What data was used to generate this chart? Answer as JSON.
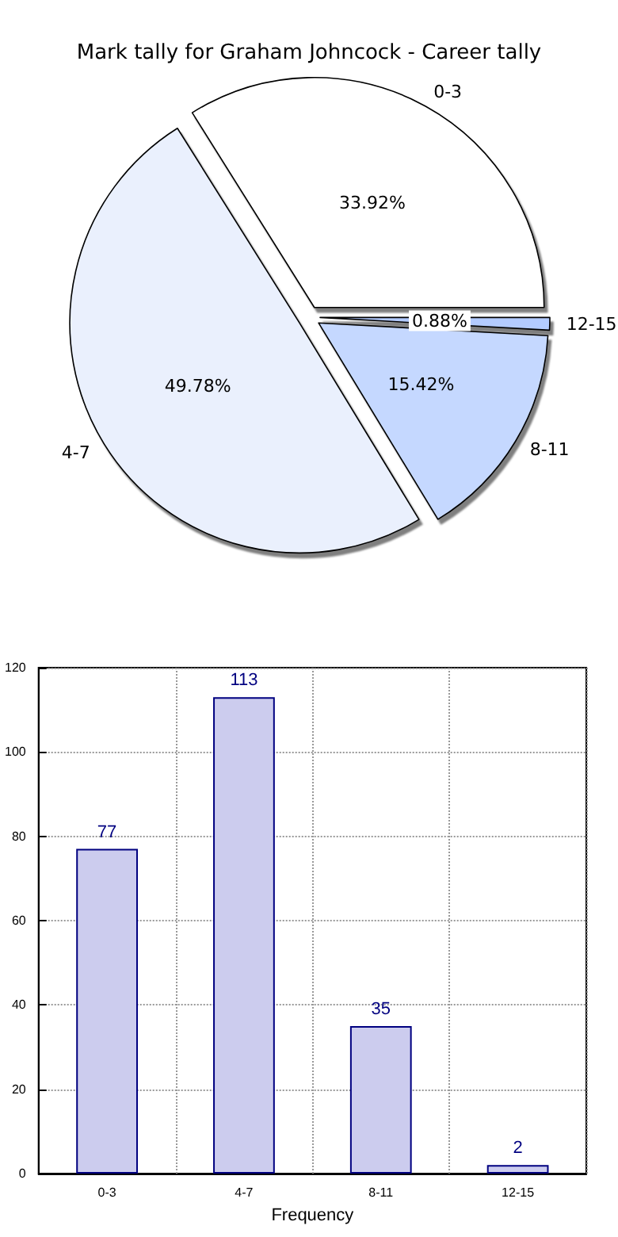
{
  "chart_data": [
    {
      "type": "pie",
      "title": "Mark tally for Graham Johncock - Career tally",
      "categories": [
        "0-3",
        "4-7",
        "8-11",
        "12-15"
      ],
      "values": [
        33.92,
        49.78,
        15.42,
        0.88
      ],
      "colors": [
        "#ffffff",
        "#eaf0fd",
        "#c5d8ff",
        "#b3cbff"
      ],
      "value_labels": [
        "33.92%",
        "49.78%",
        "15.42%",
        "0.88%"
      ]
    },
    {
      "type": "bar",
      "categories": [
        "0-3",
        "4-7",
        "8-11",
        "12-15"
      ],
      "values": [
        77,
        113,
        35,
        2
      ],
      "color": "#ccccee",
      "ylim": [
        0,
        120
      ],
      "yticks": [
        0,
        20,
        40,
        60,
        80,
        100,
        120
      ],
      "grid": true,
      "xlabel": "Frequency",
      "data_labels": true
    }
  ]
}
